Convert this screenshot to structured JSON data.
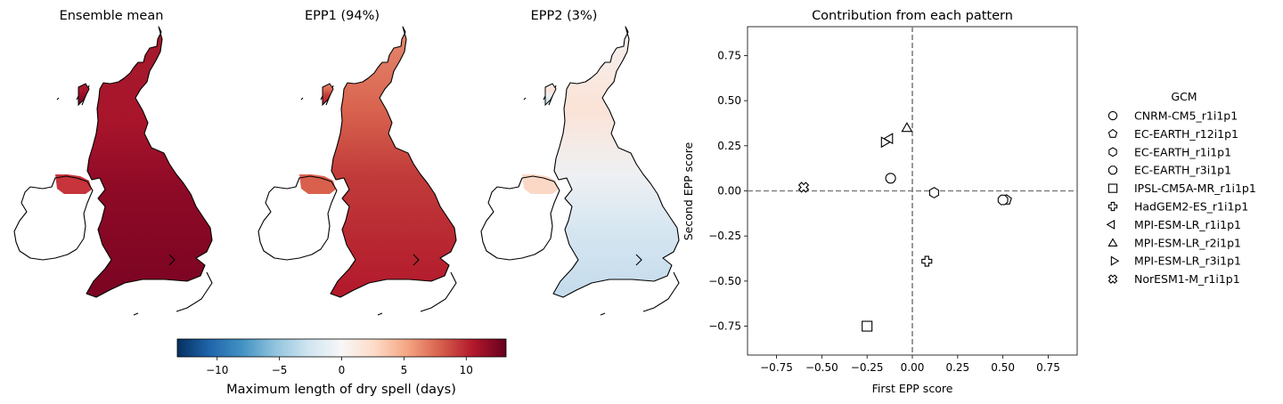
{
  "maps": [
    {
      "title": "Ensemble mean",
      "mode": "mean"
    },
    {
      "title": "EPP1 (94%)",
      "mode": "epp1"
    },
    {
      "title": "EPP2 (3%)",
      "mode": "epp2"
    }
  ],
  "colorbar": {
    "label": "Maximum length of dry spell (days)",
    "ticks": [
      -10,
      -5,
      0,
      5,
      10
    ],
    "range": [
      -13.2,
      13.2
    ],
    "colormap": "RdBu_r"
  },
  "chart_data": {
    "type": "scatter",
    "title": "Contribution from each pattern",
    "xlabel": "First EPP score",
    "ylabel": "Second EPP score",
    "xlim": [
      -0.91,
      0.91
    ],
    "ylim": [
      -0.91,
      0.91
    ],
    "xticks": [
      -0.75,
      -0.5,
      -0.25,
      0.0,
      0.25,
      0.5,
      0.75
    ],
    "yticks": [
      -0.75,
      -0.5,
      -0.25,
      0.0,
      0.25,
      0.5,
      0.75
    ],
    "tick_labels": [
      "−0.75",
      "−0.50",
      "−0.25",
      "0.00",
      "0.25",
      "0.50",
      "0.75"
    ],
    "reference_lines": [
      {
        "axis": "x",
        "value": 0
      },
      {
        "axis": "y",
        "value": 0
      }
    ],
    "grid": false,
    "legend": {
      "title": "GCM",
      "placement": "outside-right"
    },
    "series": [
      {
        "name": "CNRM-CM5_r1i1p1",
        "marker": "circle",
        "x": [
          -0.12
        ],
        "y": [
          0.07
        ]
      },
      {
        "name": "EC-EARTH_r12i1p1",
        "marker": "pentagon",
        "x": [
          0.52
        ],
        "y": [
          -0.05
        ]
      },
      {
        "name": "EC-EARTH_r1i1p1",
        "marker": "hexagon",
        "x": [
          0.12
        ],
        "y": [
          -0.01
        ]
      },
      {
        "name": "EC-EARTH_r3i1p1",
        "marker": "octagon",
        "x": [
          0.5
        ],
        "y": [
          -0.05
        ]
      },
      {
        "name": "IPSL-CM5A-MR_r1i1p1",
        "marker": "square",
        "x": [
          -0.25
        ],
        "y": [
          -0.75
        ]
      },
      {
        "name": "HadGEM2-ES_r1i1p1",
        "marker": "plus",
        "x": [
          0.08
        ],
        "y": [
          -0.39
        ]
      },
      {
        "name": "MPI-ESM-LR_r1i1p1",
        "marker": "triangle-left",
        "x": [
          -0.12
        ],
        "y": [
          0.29
        ]
      },
      {
        "name": "MPI-ESM-LR_r2i1p1",
        "marker": "triangle-up",
        "x": [
          -0.03
        ],
        "y": [
          0.35
        ]
      },
      {
        "name": "MPI-ESM-LR_r3i1p1",
        "marker": "triangle-right",
        "x": [
          -0.16
        ],
        "y": [
          0.27
        ]
      },
      {
        "name": "NorESM1-M_r1i1p1",
        "marker": "x-filled",
        "x": [
          -0.6
        ],
        "y": [
          0.02
        ]
      }
    ]
  }
}
